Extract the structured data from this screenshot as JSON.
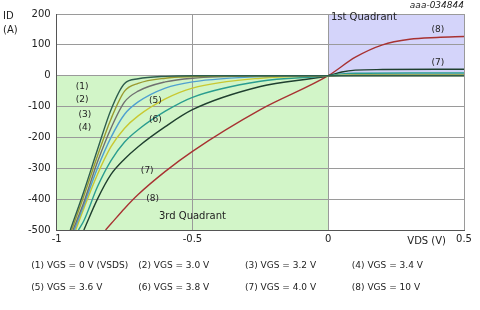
{
  "chart_data": {
    "type": "line",
    "code": "aaa-034844",
    "ylabel": "ID (A)",
    "xlabel": "VDS (V)",
    "xlim": [
      -1,
      0.5
    ],
    "xticks": [
      -1,
      -0.5,
      0,
      0.5
    ],
    "ylim": [
      -500,
      200
    ],
    "yticks": [
      -500,
      -400,
      -300,
      -200,
      -100,
      0,
      100,
      200
    ],
    "grid": true,
    "regions": [
      {
        "label": "1st Quadrant",
        "x": [
          0,
          0.5
        ],
        "y": [
          0,
          200
        ],
        "color": "#d4d4fa",
        "label_x": 0.01,
        "label_y": 188
      },
      {
        "label": "3rd Quadrant",
        "x": [
          -1,
          0
        ],
        "y": [
          -500,
          0
        ],
        "color": "#d2f5c8",
        "label_x": -0.5,
        "label_y": -455
      }
    ],
    "series": [
      {
        "name": "(1) VGS = 0 V (VSDS)",
        "color": "#2e5e4e",
        "x": [
          -0.95,
          -0.9,
          -0.85,
          -0.8,
          -0.75,
          -0.7,
          -0.6,
          -0.5,
          -0.25,
          0,
          0.1,
          0.3,
          0.5
        ],
        "values": [
          -500,
          -375,
          -240,
          -110,
          -25,
          -10,
          -2,
          0,
          0,
          0,
          0,
          0,
          0
        ]
      },
      {
        "name": "(2) VGS = 3.0 V",
        "color": "#9a9a30",
        "x": [
          -0.945,
          -0.9,
          -0.85,
          -0.8,
          -0.75,
          -0.7,
          -0.6,
          -0.5,
          -0.25,
          0,
          0.1,
          0.3,
          0.5
        ],
        "values": [
          -500,
          -390,
          -260,
          -140,
          -50,
          -25,
          -8,
          -3,
          0,
          0,
          0.3,
          0.3,
          0.3
        ]
      },
      {
        "name": "(3) VGS = 3.2 V",
        "color": "#707070",
        "x": [
          -0.94,
          -0.9,
          -0.85,
          -0.8,
          -0.75,
          -0.7,
          -0.6,
          -0.5,
          -0.25,
          0,
          0.1,
          0.3,
          0.5
        ],
        "values": [
          -500,
          -410,
          -280,
          -170,
          -85,
          -50,
          -20,
          -8,
          -1,
          0,
          0.5,
          0.5,
          0.5
        ]
      },
      {
        "name": "(4) VGS = 3.4 V",
        "color": "#4fa0d0",
        "x": [
          -0.935,
          -0.9,
          -0.85,
          -0.8,
          -0.75,
          -0.7,
          -0.6,
          -0.5,
          -0.25,
          0,
          0.1,
          0.3,
          0.5
        ],
        "values": [
          -500,
          -420,
          -300,
          -200,
          -125,
          -85,
          -40,
          -20,
          -3,
          0,
          1,
          1,
          1
        ]
      },
      {
        "name": "(5) VGS = 3.6 V",
        "color": "#c8c832",
        "x": [
          -0.93,
          -0.9,
          -0.85,
          -0.8,
          -0.75,
          -0.7,
          -0.6,
          -0.5,
          -0.25,
          0,
          0.1,
          0.3,
          0.5
        ],
        "values": [
          -500,
          -430,
          -320,
          -230,
          -170,
          -130,
          -75,
          -40,
          -8,
          0,
          3,
          3,
          3
        ]
      },
      {
        "name": "(6) VGS = 3.8 V",
        "color": "#2a9d8f",
        "x": [
          -0.92,
          -0.9,
          -0.85,
          -0.8,
          -0.75,
          -0.7,
          -0.6,
          -0.5,
          -0.25,
          0,
          0.05,
          0.1,
          0.3,
          0.5
        ],
        "values": [
          -500,
          -470,
          -360,
          -275,
          -215,
          -175,
          -115,
          -70,
          -18,
          0,
          6,
          8,
          9,
          9
        ]
      },
      {
        "name": "(7) VGS = 4.0 V",
        "color": "#1f3f2f",
        "x": [
          -0.9,
          -0.85,
          -0.8,
          -0.75,
          -0.7,
          -0.6,
          -0.5,
          -0.25,
          0,
          0.05,
          0.1,
          0.2,
          0.5
        ],
        "values": [
          -500,
          -400,
          -320,
          -270,
          -230,
          -165,
          -110,
          -35,
          0,
          12,
          18,
          20,
          21
        ]
      },
      {
        "name": "(8) VGS = 10 V",
        "color": "#a83232",
        "x": [
          -0.82,
          -0.8,
          -0.75,
          -0.7,
          -0.6,
          -0.5,
          -0.25,
          0,
          0.1,
          0.2,
          0.3,
          0.4,
          0.5
        ],
        "values": [
          -500,
          -480,
          -430,
          -385,
          -310,
          -245,
          -110,
          0,
          60,
          100,
          118,
          124,
          127
        ]
      }
    ],
    "annotations": [
      {
        "text": "(1)",
        "x": -0.93,
        "y": -36
      },
      {
        "text": "(2)",
        "x": -0.93,
        "y": -79
      },
      {
        "text": "(3)",
        "x": -0.92,
        "y": -125
      },
      {
        "text": "(4)",
        "x": -0.92,
        "y": -168
      },
      {
        "text": "(5)",
        "x": -0.66,
        "y": -82
      },
      {
        "text": "(6)",
        "x": -0.66,
        "y": -141
      },
      {
        "text": "(7)",
        "x": -0.69,
        "y": -309
      },
      {
        "text": "(8)",
        "x": -0.67,
        "y": -400
      },
      {
        "text": "(8)",
        "x": 0.38,
        "y": 150
      },
      {
        "text": "(7)",
        "x": 0.38,
        "y": 42
      }
    ]
  }
}
